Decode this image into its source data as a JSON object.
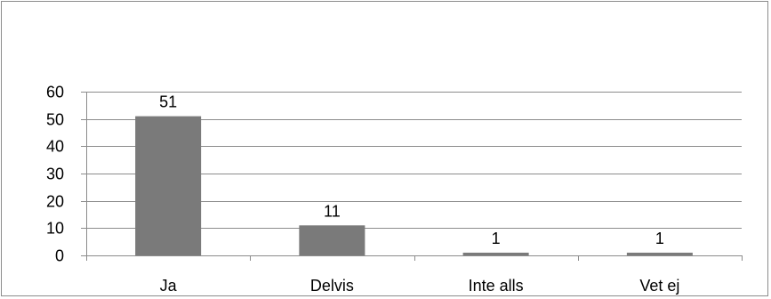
{
  "chart_data": {
    "type": "bar",
    "categories": [
      "Ja",
      "Delvis",
      "Inte alls",
      "Vet ej"
    ],
    "values": [
      51,
      11,
      1,
      1
    ],
    "data_labels": [
      "51",
      "11",
      "1",
      "1"
    ],
    "yticks": [
      0,
      10,
      20,
      30,
      40,
      50,
      60
    ],
    "ylim": [
      0,
      60
    ],
    "grid": true,
    "legend": "none",
    "title": "",
    "xlabel": "",
    "ylabel": "",
    "colors": {
      "bar": "#7a7a7a",
      "gridline": "#8c8c8c",
      "axis": "#8c8c8c"
    }
  }
}
